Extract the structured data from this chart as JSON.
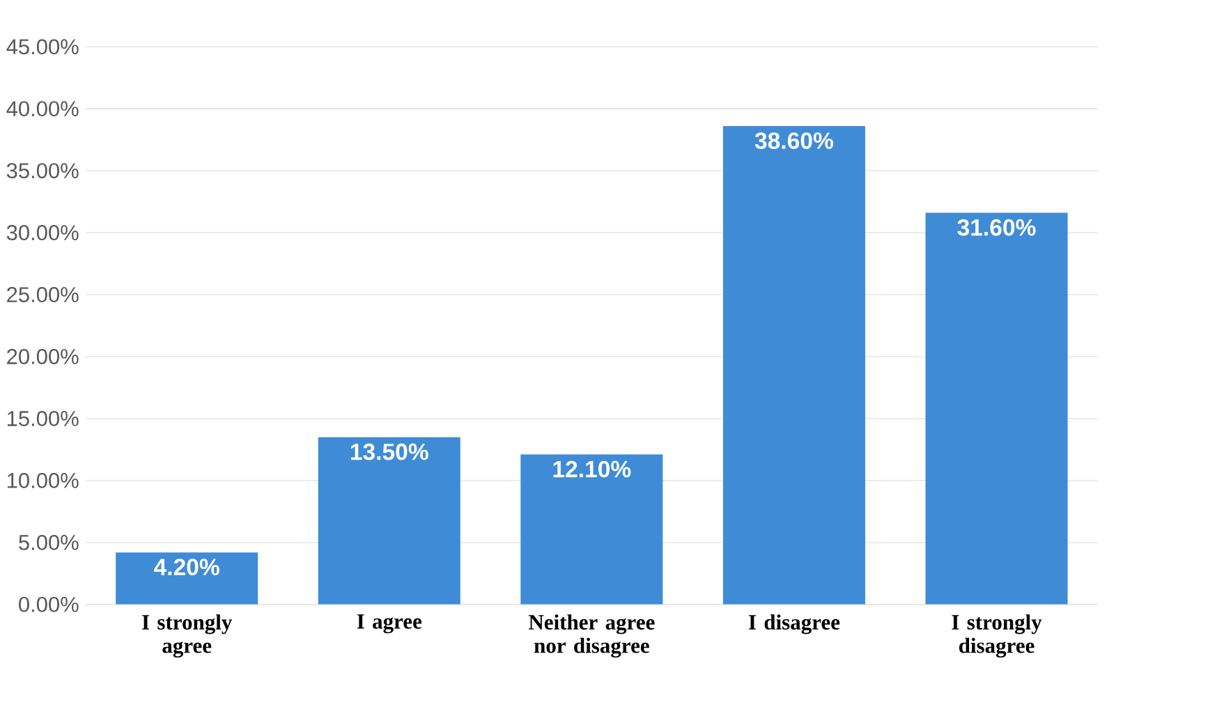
{
  "chart_data": {
    "type": "bar",
    "categories": [
      "I strongly agree",
      "I agree",
      "Neither agree nor disagree",
      "I disagree",
      "I strongly disagree"
    ],
    "values": [
      4.2,
      13.5,
      12.1,
      38.6,
      31.6
    ],
    "value_labels": [
      "4.20%",
      "13.50%",
      "12.10%",
      "38.60%",
      "31.60%"
    ],
    "color": "#3f8bd6",
    "ylim": [
      0,
      45
    ],
    "yticks": [
      {
        "value": 0,
        "label": "0.00%"
      },
      {
        "value": 5,
        "label": "5.00%"
      },
      {
        "value": 10,
        "label": "10.00%"
      },
      {
        "value": 15,
        "label": "15.00%"
      },
      {
        "value": 20,
        "label": "20.00%"
      },
      {
        "value": 25,
        "label": "25.00%"
      },
      {
        "value": 30,
        "label": "30.00%"
      },
      {
        "value": 35,
        "label": "35.00%"
      },
      {
        "value": 40,
        "label": "40.00%"
      },
      {
        "value": 45,
        "label": "45.00%"
      }
    ],
    "grid": "y"
  }
}
